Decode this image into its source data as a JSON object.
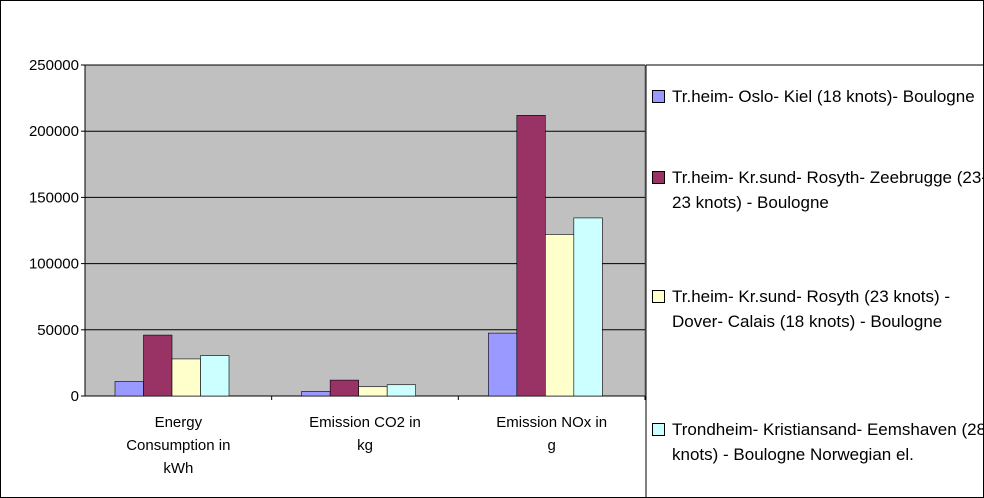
{
  "chart_data": {
    "type": "bar",
    "categories": [
      "Energy Consumption in kWh",
      "Emission CO2 in kg",
      "Emission NOx in g"
    ],
    "series": [
      {
        "name": "Tr.heim- Oslo- Kiel (18 knots)- Boulogne",
        "color": "#9999ff",
        "values": [
          11000,
          3500,
          47500
        ]
      },
      {
        "name": "Tr.heim- Kr.sund- Rosyth- Zeebrugge (23-23 knots) - Boulogne",
        "color": "#993366",
        "values": [
          46000,
          12000,
          212000
        ]
      },
      {
        "name": "Tr.heim- Kr.sund- Rosyth (23 knots) - Dover- Calais (18 knots) - Boulogne",
        "color": "#ffffcc",
        "values": [
          28000,
          7000,
          122000
        ]
      },
      {
        "name": "Trondheim- Kristiansand- Eemshaven (28 knots) - Boulogne Norwegian el.",
        "color": "#ccffff",
        "values": [
          30500,
          8500,
          134500
        ]
      }
    ],
    "ylim": [
      0,
      250000
    ],
    "yticks": [
      0,
      50000,
      100000,
      150000,
      200000,
      250000
    ],
    "grid": true,
    "legend": "right"
  }
}
